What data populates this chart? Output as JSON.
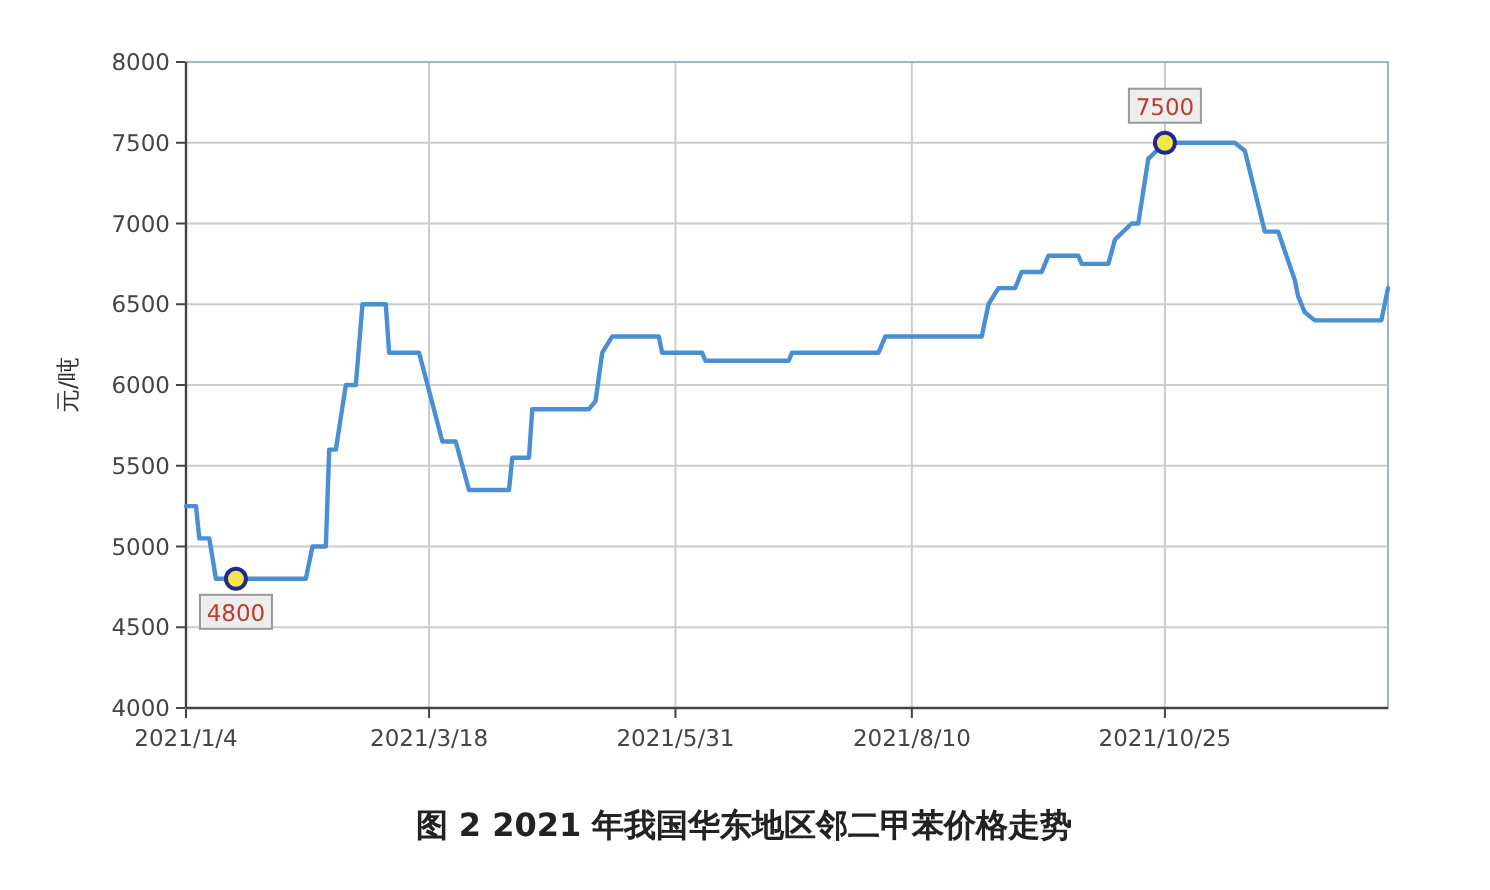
{
  "chart_data": {
    "type": "line",
    "title": "图 2 2021 年我国华东地区邻二甲苯价格走势",
    "ylabel": "元/吨",
    "xlim": [
      "2021-01-04",
      "2021-12-31"
    ],
    "xticks": [
      {
        "value": "2021-01-04",
        "label": "2021/1/4"
      },
      {
        "value": "2021-03-18",
        "label": "2021/3/18"
      },
      {
        "value": "2021-05-31",
        "label": "2021/5/31"
      },
      {
        "value": "2021-08-10",
        "label": "2021/8/10"
      },
      {
        "value": "2021-10-25",
        "label": "2021/10/25"
      }
    ],
    "ylim": [
      4000,
      8000
    ],
    "yticks": [
      4000,
      4500,
      5000,
      5500,
      6000,
      6500,
      7000,
      7500,
      8000
    ],
    "grid": true,
    "marker": "none",
    "line_style": "solid",
    "series": [
      {
        "color": "#4a8fd4",
        "x": [
          "2021-01-04",
          "2021-01-07",
          "2021-01-08",
          "2021-01-11",
          "2021-01-13",
          "2021-01-19",
          "2021-02-09",
          "2021-02-11",
          "2021-02-15",
          "2021-02-16",
          "2021-02-18",
          "2021-02-21",
          "2021-02-24",
          "2021-02-26",
          "2021-03-05",
          "2021-03-06",
          "2021-03-15",
          "2021-03-22",
          "2021-03-26",
          "2021-03-30",
          "2021-04-11",
          "2021-04-12",
          "2021-04-17",
          "2021-04-18",
          "2021-05-05",
          "2021-05-07",
          "2021-05-09",
          "2021-05-12",
          "2021-05-26",
          "2021-05-27",
          "2021-06-08",
          "2021-06-09",
          "2021-07-04",
          "2021-07-05",
          "2021-07-31",
          "2021-08-02",
          "2021-08-31",
          "2021-09-02",
          "2021-09-05",
          "2021-09-10",
          "2021-09-12",
          "2021-09-18",
          "2021-09-20",
          "2021-09-29",
          "2021-09-30",
          "2021-10-08",
          "2021-10-10",
          "2021-10-15",
          "2021-10-17",
          "2021-10-20",
          "2021-10-25",
          "2021-11-15",
          "2021-11-18",
          "2021-11-21",
          "2021-11-24",
          "2021-11-28",
          "2021-12-03",
          "2021-12-04",
          "2021-12-06",
          "2021-12-09",
          "2021-12-29",
          "2021-12-31"
        ],
        "values": [
          5250,
          5250,
          5050,
          5050,
          4800,
          4800,
          4800,
          5000,
          5000,
          5600,
          5600,
          6000,
          6000,
          6500,
          6500,
          6200,
          6200,
          5650,
          5650,
          5350,
          5350,
          5550,
          5550,
          5850,
          5850,
          5900,
          6200,
          6300,
          6300,
          6200,
          6200,
          6150,
          6150,
          6200,
          6200,
          6300,
          6300,
          6500,
          6600,
          6600,
          6700,
          6700,
          6800,
          6800,
          6750,
          6750,
          6900,
          7000,
          7000,
          7400,
          7500,
          7500,
          7450,
          7200,
          6950,
          6950,
          6650,
          6550,
          6450,
          6400,
          6400,
          6600
        ]
      }
    ],
    "annotations": [
      {
        "text": "4800",
        "x": "2021-01-19",
        "y": 4800
      },
      {
        "text": "7500",
        "x": "2021-10-25",
        "y": 7500
      }
    ]
  }
}
